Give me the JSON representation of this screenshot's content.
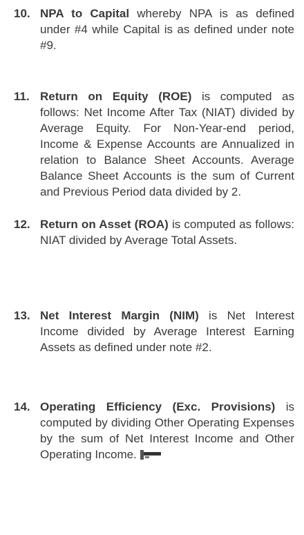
{
  "items": [
    {
      "number": "10.",
      "term": "NPA to Capital",
      "text": "whereby NPA is as defined under #4 while Capital is as defined under note #9."
    },
    {
      "number": "11.",
      "term": "Return on Equity (ROE)",
      "text": "is computed as follows: Net Income After Tax (NIAT) divided by Average Equity. For Non-Year-end period, Income & Expense Accounts are Annualized in relation to Balance Sheet Accounts. Average Balance Sheet Accounts is the sum of Current and Previous Period data divided by 2."
    },
    {
      "number": "12.",
      "term": "Return on Asset (ROA)",
      "text": "is computed as follows: NIAT divided by Average Total Assets."
    },
    {
      "number": "13.",
      "term": "Net Interest Margin (NIM)",
      "text": "is Net Interest Income divided by Average Interest Earning Assets as defined under note #2."
    },
    {
      "number": "14.",
      "term": "Operating Efficiency (Exc. Provisions)",
      "text": "is computed by dividing Other Operating Expenses by the sum of Net Interest Income and Other Operating Income."
    }
  ]
}
